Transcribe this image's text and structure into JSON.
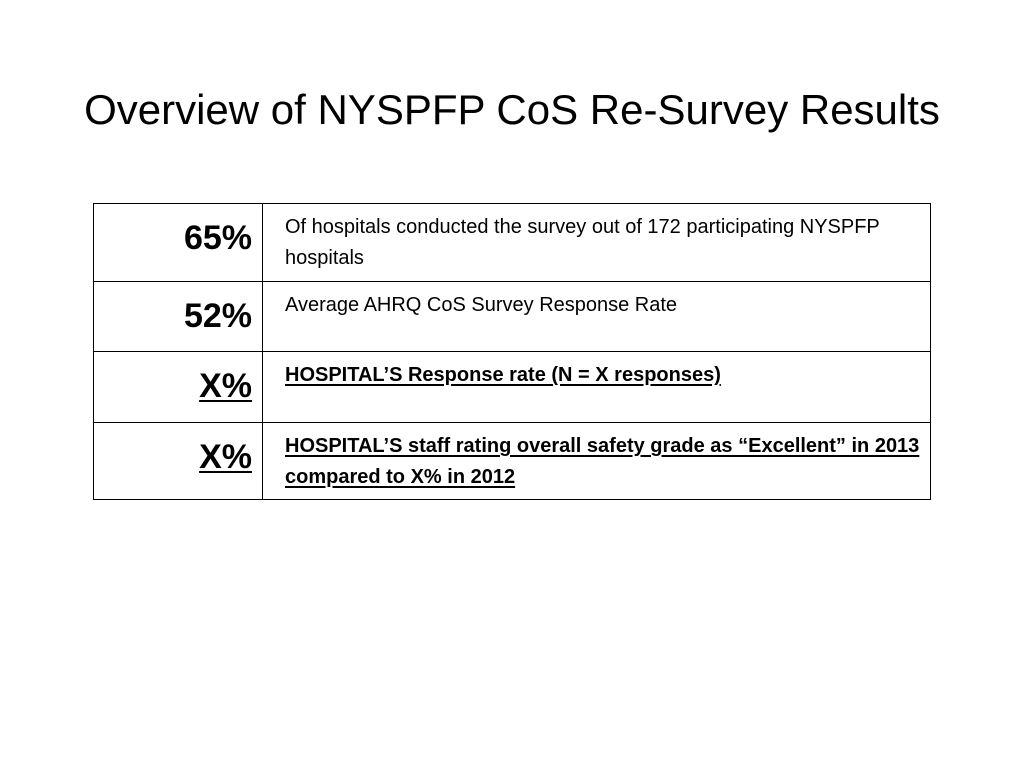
{
  "slide": {
    "title": "Overview of NYSPFP CoS Re-Survey Results"
  },
  "rows": [
    {
      "value": "65%",
      "description": "Of hospitals conducted the survey out of 172 participating NYSPFP hospitals"
    },
    {
      "value": "52%",
      "description": "Average AHRQ CoS Survey Response Rate"
    },
    {
      "value": "X%",
      "description": "HOSPITAL’S Response rate  (N = X responses)"
    },
    {
      "value": "X%",
      "description": "HOSPITAL’S staff rating overall safety grade as “Excellent” in 2013 compared to X% in 2012"
    }
  ]
}
